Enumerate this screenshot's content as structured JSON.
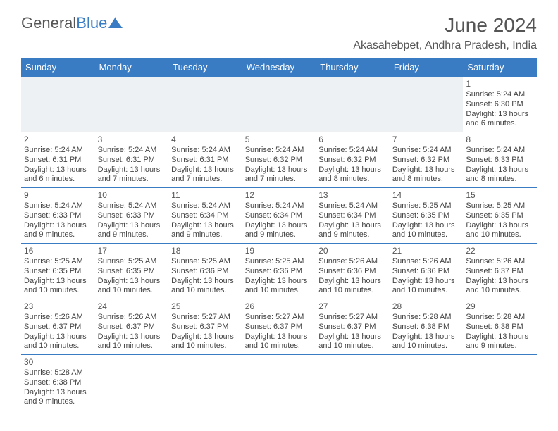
{
  "logo": {
    "text_a": "General",
    "text_b": "Blue"
  },
  "title": "June 2024",
  "location": "Akasahebpet, Andhra Pradesh, India",
  "colors": {
    "header_bg": "#3a7cc4",
    "header_text": "#ffffff",
    "border": "#3a7cc4",
    "body_text": "#444444",
    "title_text": "#555555",
    "empty_bg": "#eef1f3"
  },
  "fonts": {
    "title_size": 28,
    "location_size": 16,
    "header_size": 13,
    "cell_size": 11
  },
  "day_headers": [
    "Sunday",
    "Monday",
    "Tuesday",
    "Wednesday",
    "Thursday",
    "Friday",
    "Saturday"
  ],
  "weeks": [
    [
      null,
      null,
      null,
      null,
      null,
      null,
      {
        "n": "1",
        "sunrise": "Sunrise: 5:24 AM",
        "sunset": "Sunset: 6:30 PM",
        "day1": "Daylight: 13 hours",
        "day2": "and 6 minutes."
      }
    ],
    [
      {
        "n": "2",
        "sunrise": "Sunrise: 5:24 AM",
        "sunset": "Sunset: 6:31 PM",
        "day1": "Daylight: 13 hours",
        "day2": "and 6 minutes."
      },
      {
        "n": "3",
        "sunrise": "Sunrise: 5:24 AM",
        "sunset": "Sunset: 6:31 PM",
        "day1": "Daylight: 13 hours",
        "day2": "and 7 minutes."
      },
      {
        "n": "4",
        "sunrise": "Sunrise: 5:24 AM",
        "sunset": "Sunset: 6:31 PM",
        "day1": "Daylight: 13 hours",
        "day2": "and 7 minutes."
      },
      {
        "n": "5",
        "sunrise": "Sunrise: 5:24 AM",
        "sunset": "Sunset: 6:32 PM",
        "day1": "Daylight: 13 hours",
        "day2": "and 7 minutes."
      },
      {
        "n": "6",
        "sunrise": "Sunrise: 5:24 AM",
        "sunset": "Sunset: 6:32 PM",
        "day1": "Daylight: 13 hours",
        "day2": "and 8 minutes."
      },
      {
        "n": "7",
        "sunrise": "Sunrise: 5:24 AM",
        "sunset": "Sunset: 6:32 PM",
        "day1": "Daylight: 13 hours",
        "day2": "and 8 minutes."
      },
      {
        "n": "8",
        "sunrise": "Sunrise: 5:24 AM",
        "sunset": "Sunset: 6:33 PM",
        "day1": "Daylight: 13 hours",
        "day2": "and 8 minutes."
      }
    ],
    [
      {
        "n": "9",
        "sunrise": "Sunrise: 5:24 AM",
        "sunset": "Sunset: 6:33 PM",
        "day1": "Daylight: 13 hours",
        "day2": "and 9 minutes."
      },
      {
        "n": "10",
        "sunrise": "Sunrise: 5:24 AM",
        "sunset": "Sunset: 6:33 PM",
        "day1": "Daylight: 13 hours",
        "day2": "and 9 minutes."
      },
      {
        "n": "11",
        "sunrise": "Sunrise: 5:24 AM",
        "sunset": "Sunset: 6:34 PM",
        "day1": "Daylight: 13 hours",
        "day2": "and 9 minutes."
      },
      {
        "n": "12",
        "sunrise": "Sunrise: 5:24 AM",
        "sunset": "Sunset: 6:34 PM",
        "day1": "Daylight: 13 hours",
        "day2": "and 9 minutes."
      },
      {
        "n": "13",
        "sunrise": "Sunrise: 5:24 AM",
        "sunset": "Sunset: 6:34 PM",
        "day1": "Daylight: 13 hours",
        "day2": "and 9 minutes."
      },
      {
        "n": "14",
        "sunrise": "Sunrise: 5:25 AM",
        "sunset": "Sunset: 6:35 PM",
        "day1": "Daylight: 13 hours",
        "day2": "and 10 minutes."
      },
      {
        "n": "15",
        "sunrise": "Sunrise: 5:25 AM",
        "sunset": "Sunset: 6:35 PM",
        "day1": "Daylight: 13 hours",
        "day2": "and 10 minutes."
      }
    ],
    [
      {
        "n": "16",
        "sunrise": "Sunrise: 5:25 AM",
        "sunset": "Sunset: 6:35 PM",
        "day1": "Daylight: 13 hours",
        "day2": "and 10 minutes."
      },
      {
        "n": "17",
        "sunrise": "Sunrise: 5:25 AM",
        "sunset": "Sunset: 6:35 PM",
        "day1": "Daylight: 13 hours",
        "day2": "and 10 minutes."
      },
      {
        "n": "18",
        "sunrise": "Sunrise: 5:25 AM",
        "sunset": "Sunset: 6:36 PM",
        "day1": "Daylight: 13 hours",
        "day2": "and 10 minutes."
      },
      {
        "n": "19",
        "sunrise": "Sunrise: 5:25 AM",
        "sunset": "Sunset: 6:36 PM",
        "day1": "Daylight: 13 hours",
        "day2": "and 10 minutes."
      },
      {
        "n": "20",
        "sunrise": "Sunrise: 5:26 AM",
        "sunset": "Sunset: 6:36 PM",
        "day1": "Daylight: 13 hours",
        "day2": "and 10 minutes."
      },
      {
        "n": "21",
        "sunrise": "Sunrise: 5:26 AM",
        "sunset": "Sunset: 6:36 PM",
        "day1": "Daylight: 13 hours",
        "day2": "and 10 minutes."
      },
      {
        "n": "22",
        "sunrise": "Sunrise: 5:26 AM",
        "sunset": "Sunset: 6:37 PM",
        "day1": "Daylight: 13 hours",
        "day2": "and 10 minutes."
      }
    ],
    [
      {
        "n": "23",
        "sunrise": "Sunrise: 5:26 AM",
        "sunset": "Sunset: 6:37 PM",
        "day1": "Daylight: 13 hours",
        "day2": "and 10 minutes."
      },
      {
        "n": "24",
        "sunrise": "Sunrise: 5:26 AM",
        "sunset": "Sunset: 6:37 PM",
        "day1": "Daylight: 13 hours",
        "day2": "and 10 minutes."
      },
      {
        "n": "25",
        "sunrise": "Sunrise: 5:27 AM",
        "sunset": "Sunset: 6:37 PM",
        "day1": "Daylight: 13 hours",
        "day2": "and 10 minutes."
      },
      {
        "n": "26",
        "sunrise": "Sunrise: 5:27 AM",
        "sunset": "Sunset: 6:37 PM",
        "day1": "Daylight: 13 hours",
        "day2": "and 10 minutes."
      },
      {
        "n": "27",
        "sunrise": "Sunrise: 5:27 AM",
        "sunset": "Sunset: 6:37 PM",
        "day1": "Daylight: 13 hours",
        "day2": "and 10 minutes."
      },
      {
        "n": "28",
        "sunrise": "Sunrise: 5:28 AM",
        "sunset": "Sunset: 6:38 PM",
        "day1": "Daylight: 13 hours",
        "day2": "and 10 minutes."
      },
      {
        "n": "29",
        "sunrise": "Sunrise: 5:28 AM",
        "sunset": "Sunset: 6:38 PM",
        "day1": "Daylight: 13 hours",
        "day2": "and 9 minutes."
      }
    ],
    [
      {
        "n": "30",
        "sunrise": "Sunrise: 5:28 AM",
        "sunset": "Sunset: 6:38 PM",
        "day1": "Daylight: 13 hours",
        "day2": "and 9 minutes."
      },
      null,
      null,
      null,
      null,
      null,
      null
    ]
  ]
}
